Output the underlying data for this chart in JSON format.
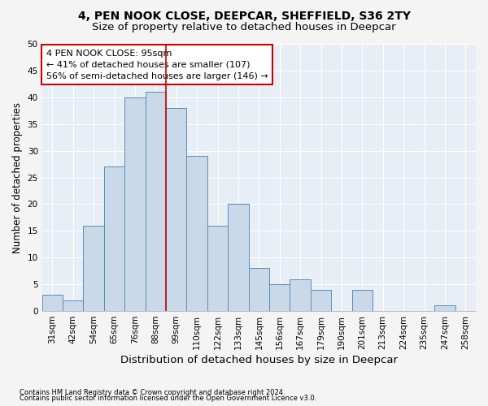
{
  "title_line1": "4, PEN NOOK CLOSE, DEEPCAR, SHEFFIELD, S36 2TY",
  "title_line2": "Size of property relative to detached houses in Deepcar",
  "xlabel": "Distribution of detached houses by size in Deepcar",
  "ylabel": "Number of detached properties",
  "footnote1": "Contains HM Land Registry data © Crown copyright and database right 2024.",
  "footnote2": "Contains public sector information licensed under the Open Government Licence v3.0.",
  "bin_labels": [
    "31sqm",
    "42sqm",
    "54sqm",
    "65sqm",
    "76sqm",
    "88sqm",
    "99sqm",
    "110sqm",
    "122sqm",
    "133sqm",
    "145sqm",
    "156sqm",
    "167sqm",
    "179sqm",
    "190sqm",
    "201sqm",
    "213sqm",
    "224sqm",
    "235sqm",
    "247sqm",
    "258sqm"
  ],
  "bar_values": [
    3,
    2,
    16,
    27,
    40,
    41,
    38,
    29,
    16,
    20,
    8,
    5,
    6,
    4,
    0,
    4,
    0,
    0,
    0,
    1,
    0
  ],
  "bar_color": "#c9d9ea",
  "bar_edge_color": "#5b8db8",
  "annotation_text": "4 PEN NOOK CLOSE: 95sqm\n← 41% of detached houses are smaller (107)\n56% of semi-detached houses are larger (146) →",
  "vline_color": "#cc0000",
  "vline_x_bar": 6,
  "ylim": [
    0,
    50
  ],
  "yticks": [
    0,
    5,
    10,
    15,
    20,
    25,
    30,
    35,
    40,
    45,
    50
  ],
  "annotation_box_color": "#cc0000",
  "background_color": "#e8eef5",
  "grid_color": "#ffffff",
  "title_fontsize": 10,
  "subtitle_fontsize": 9.5,
  "xlabel_fontsize": 9.5,
  "ylabel_fontsize": 8.5,
  "tick_fontsize": 7.5,
  "annotation_fontsize": 8
}
